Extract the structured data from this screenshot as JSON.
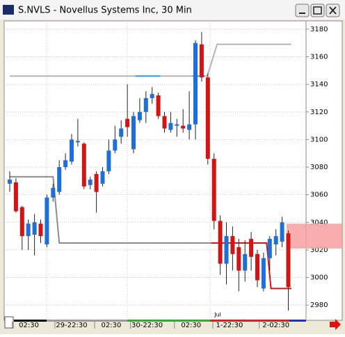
{
  "chart_data": {
    "type": "candlestick",
    "title": "S.NVLS - Novellus Systems Inc, 30 Min",
    "open": [
      3068,
      3069,
      3051,
      3030,
      3031,
      3039,
      3024,
      3058,
      3062,
      3080,
      3084,
      3098,
      3097,
      3067,
      3075,
      3068,
      3077,
      3092,
      3102,
      3115,
      3093,
      3114,
      3120,
      3130,
      3132,
      3117,
      3107,
      3110,
      3110,
      3107,
      3111,
      3169,
      3145,
      3086,
      3041,
      3010,
      3030,
      3022,
      3005,
      3028,
      3017,
      2992,
      3014,
      3024,
      3026,
      3032
    ],
    "close": [
      3071,
      3048,
      3030,
      3039,
      3040,
      3030,
      3058,
      3065,
      3080,
      3085,
      3100,
      3099,
      3066,
      3071,
      3062,
      3077,
      3092,
      3100,
      3108,
      3109,
      3117,
      3120,
      3130,
      3133,
      3117,
      3108,
      3112,
      3111,
      3108,
      3111,
      3170,
      3145,
      3086,
      3041,
      3010,
      3030,
      3017,
      3005,
      3017,
      3015,
      2998,
      3014,
      3028,
      3030,
      3040,
      2993
    ],
    "high": [
      3077,
      3072,
      3052,
      3042,
      3046,
      3042,
      3060,
      3068,
      3085,
      3090,
      3104,
      3115,
      3098,
      3073,
      3077,
      3080,
      3100,
      3110,
      3114,
      3140,
      3120,
      3130,
      3135,
      3138,
      3134,
      3120,
      3120,
      3115,
      3122,
      3135,
      3172,
      3178,
      3148,
      3090,
      3045,
      3040,
      3037,
      3028,
      3027,
      3033,
      3020,
      3018,
      3030,
      3035,
      3044,
      3034
    ],
    "low": [
      3062,
      3047,
      3020,
      3020,
      3016,
      3025,
      3022,
      3055,
      3060,
      3078,
      3082,
      3095,
      3064,
      3064,
      3047,
      3066,
      3075,
      3090,
      3097,
      3102,
      3090,
      3112,
      3112,
      3126,
      3115,
      3105,
      3105,
      3102,
      3105,
      3100,
      3100,
      3142,
      3082,
      3035,
      3002,
      2995,
      3005,
      2990,
      2997,
      3005,
      2993,
      2990,
      3005,
      3016,
      3022,
      2976
    ],
    "up_color": "#1e6fd6",
    "down_color": "#d41414",
    "overlays": [
      {
        "color": "#8c8c8c",
        "x": [
          0,
          7,
          8,
          32.5
        ],
        "values": [
          3073,
          3073,
          3025,
          3025
        ]
      },
      {
        "color": "#b4b4b4",
        "x": [
          0,
          31.9,
          33.5,
          45.5
        ],
        "values": [
          3146,
          3146,
          3169,
          3169
        ]
      },
      {
        "color": "#e01010",
        "x": [
          32.5,
          41.5,
          42.2,
          45.5
        ],
        "values": [
          3025,
          3025,
          2992,
          2992
        ]
      },
      {
        "color": "#3399ff",
        "x": [
          20.3,
          24.3
        ],
        "values": [
          3146,
          3146
        ]
      },
      {
        "color": "#3399ff",
        "x": [
          29.5,
          31.5
        ],
        "values": [
          3146,
          3146
        ]
      }
    ],
    "price_band": [
      3021,
      3039
    ],
    "ylim": [
      2970,
      3186
    ],
    "yticks": [
      2980,
      3000,
      3020,
      3040,
      3060,
      3080,
      3100,
      3120,
      3140,
      3160,
      3180
    ],
    "xticks": [
      {
        "value": 3.1,
        "label": "02:30"
      },
      {
        "value": 10,
        "label": "29-22:30"
      },
      {
        "value": 16.4,
        "label": "02:30"
      },
      {
        "value": 22.2,
        "label": "30-22:30"
      },
      {
        "value": 29.3,
        "label": "02:30"
      },
      {
        "value": 35.5,
        "label": "1-22:30"
      },
      {
        "value": 43,
        "label": "2-02:30"
      }
    ],
    "annotation": {
      "x": 33.6,
      "label": "Jul"
    }
  }
}
